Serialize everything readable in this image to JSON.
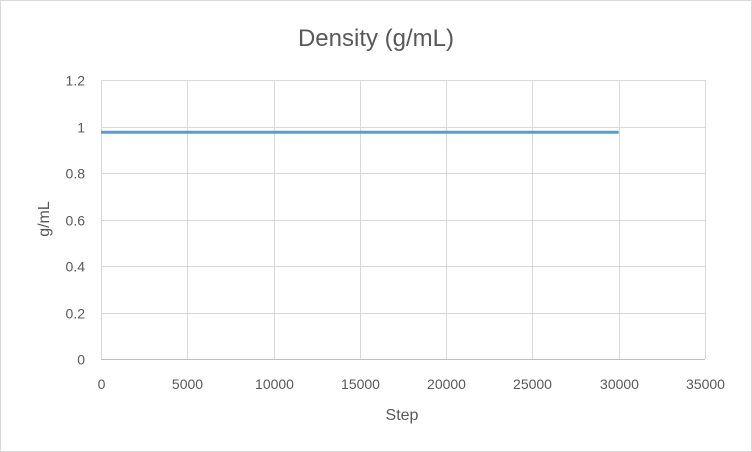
{
  "chart_data": {
    "type": "line",
    "title": "Density (g/mL)",
    "xlabel": "Step",
    "ylabel": "g/mL",
    "xlim": [
      0,
      35000
    ],
    "ylim": [
      0,
      1.2
    ],
    "x_ticks": [
      0,
      5000,
      10000,
      15000,
      20000,
      25000,
      30000,
      35000
    ],
    "y_ticks": [
      0,
      0.2,
      0.4,
      0.6,
      0.8,
      1,
      1.2
    ],
    "grid": true,
    "legend": "none",
    "series": [
      {
        "color": "#5b9bd5",
        "x": [
          0,
          5000,
          10000,
          15000,
          20000,
          25000,
          30000
        ],
        "y": [
          0.975,
          0.975,
          0.975,
          0.975,
          0.975,
          0.975,
          0.975
        ]
      }
    ]
  }
}
